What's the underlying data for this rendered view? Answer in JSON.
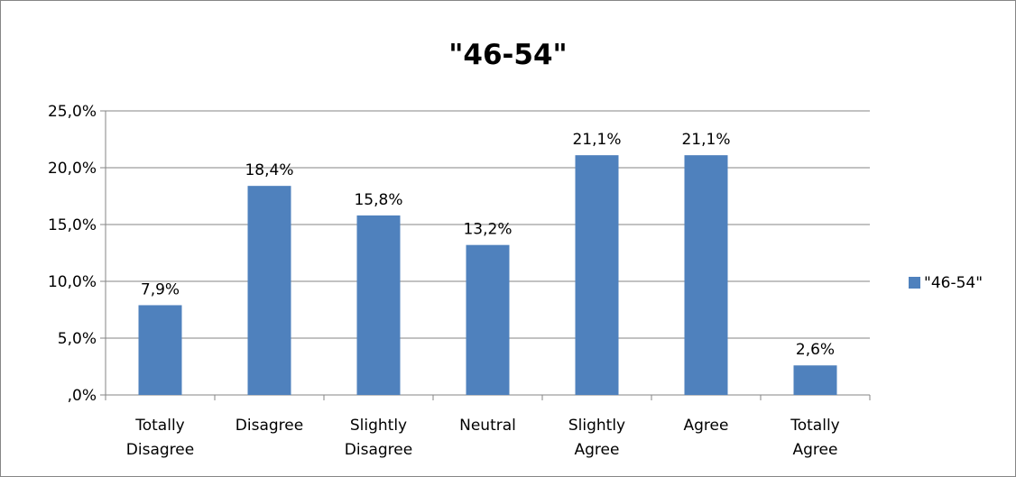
{
  "chart_data": {
    "type": "bar",
    "title": "\"46-54\"",
    "categories": [
      [
        "Totally",
        "Disagree"
      ],
      [
        "Disagree"
      ],
      [
        "Slightly",
        "Disagree"
      ],
      [
        "Neutral"
      ],
      [
        "Slightly",
        "Agree"
      ],
      [
        "Agree"
      ],
      [
        "Totally",
        "Agree"
      ]
    ],
    "series": [
      {
        "name": "\"46-54\"",
        "color": "#4F81BD",
        "values": [
          7.9,
          18.4,
          15.8,
          13.2,
          21.1,
          21.1,
          2.6
        ],
        "data_labels": [
          "7,9%",
          "18,4%",
          "15,8%",
          "13,2%",
          "21,1%",
          "21,1%",
          "2,6%"
        ]
      }
    ],
    "ylim": [
      0,
      25
    ],
    "y_ticks": [
      0,
      5,
      10,
      15,
      20,
      25
    ],
    "y_tick_labels": [
      ",0%",
      "5,0%",
      "10,0%",
      "15,0%",
      "20,0%",
      "25,0%"
    ],
    "grid": true,
    "legend_position": "right"
  }
}
